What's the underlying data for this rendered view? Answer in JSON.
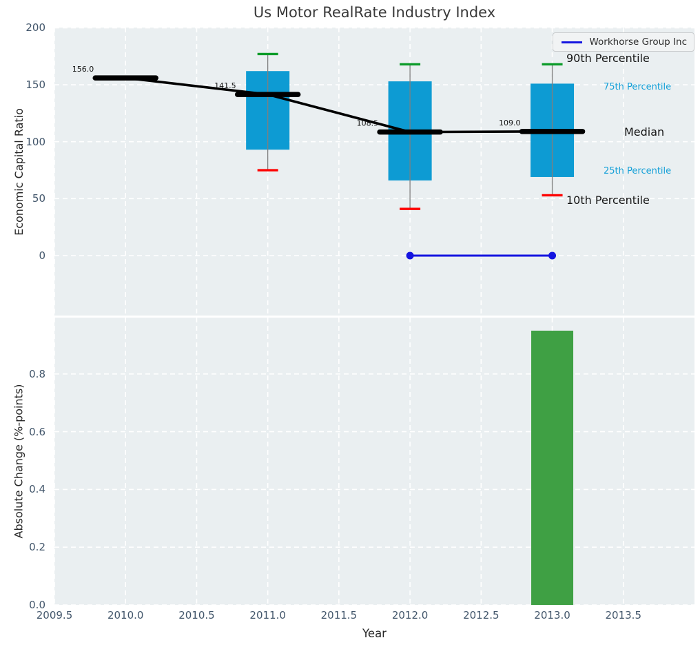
{
  "title": "Us Motor RealRate Industry Index",
  "xlabel": "Year",
  "xticks": [
    "2009.5",
    "2010.0",
    "2010.5",
    "2011.0",
    "2011.5",
    "2012.0",
    "2012.5",
    "2013.0",
    "2013.5"
  ],
  "annotations": {
    "p90": "90th Percentile",
    "p75": "75th Percentile",
    "median": "Median",
    "p25": "25th Percentile",
    "p10": "10th Percentile"
  },
  "colors": {
    "box": "#0d9bd3",
    "median_line": "#000000",
    "p90_cap": "#0a9b28",
    "p10_cap": "#fe0000",
    "whisker": "#7f7f7f",
    "overlay_line": "#1414e0",
    "bar": "#3fa044",
    "percentile_text": "#14a0d8",
    "tick_text": "#42566b",
    "panel_bg": "#eaeff1",
    "grid": "#ffffff"
  },
  "chart_data": [
    {
      "type": "boxplot",
      "title": "Us Motor RealRate Industry Index",
      "ylabel": "Economic Capital Ratio",
      "xlabel": "Year",
      "xlim": [
        2009.5,
        2014.0
      ],
      "ylim": [
        -53,
        202
      ],
      "yticks": [
        0,
        50,
        100,
        150,
        200
      ],
      "grid": true,
      "x": [
        2010,
        2011,
        2012,
        2013
      ],
      "median": [
        156.0,
        141.5,
        108.5,
        109.0
      ],
      "median_labels": [
        "156.0",
        "141.5",
        "108.5",
        "109.0"
      ],
      "p25": [
        null,
        93,
        66,
        69
      ],
      "p75": [
        null,
        162,
        153,
        151
      ],
      "p10": [
        null,
        75,
        41,
        53
      ],
      "p90": [
        null,
        177,
        168,
        168
      ],
      "overlay_line": {
        "name": "Workhorse Group Inc",
        "x": [
          2012,
          2013
        ],
        "y": [
          0,
          0
        ]
      },
      "legend_position": "upper right"
    },
    {
      "type": "bar",
      "ylabel": "Absolute Change (%-points)",
      "xlabel": "Year",
      "xlim": [
        2009.5,
        2014.0
      ],
      "ylim": [
        0,
        0.995
      ],
      "yticks": [
        "0.0",
        "0.2",
        "0.4",
        "0.6",
        "0.8"
      ],
      "grid": true,
      "x": [
        2013
      ],
      "values": [
        0.95
      ]
    }
  ]
}
